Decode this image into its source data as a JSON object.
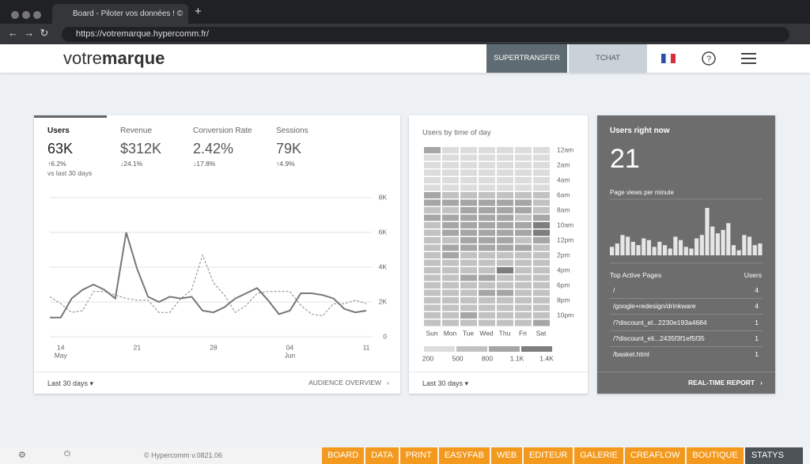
{
  "browser": {
    "tab_title": "Board - Piloter vos données ! ©",
    "url": "https://votremarque.hypercomm.fr/"
  },
  "header": {
    "logo_light": "votre",
    "logo_bold": "marque",
    "buttons": [
      "SUPERTRANSFER",
      "TCHAT"
    ]
  },
  "audience": {
    "metrics": [
      {
        "label": "Users",
        "value": "63K",
        "change": "↑6.2%"
      },
      {
        "label": "Revenue",
        "value": "$312K",
        "change": "↓24.1%"
      },
      {
        "label": "Conversion Rate",
        "value": "2.42%",
        "change": "↓17.8%"
      },
      {
        "label": "Sessions",
        "value": "79K",
        "change": "↑4.9%"
      }
    ],
    "comparison": "vs last 30 days",
    "period": "Last 30 days",
    "link": "AUDIENCE OVERVIEW"
  },
  "time_of_day": {
    "period": "Last 30 days"
  },
  "realtime": {
    "title": "Users right now",
    "count": 21,
    "table": {
      "headers": [
        "Top Active Pages",
        "Users"
      ],
      "rows": [
        [
          "/",
          4
        ],
        [
          "/google+redesign/drinkware",
          4
        ],
        [
          "/?discount_el...2230e193a4684",
          1
        ],
        [
          "/?discount_eli...2435f3f1ef5f35",
          1
        ],
        [
          "/basket.html",
          1
        ]
      ]
    },
    "link": "REAL-TIME REPORT"
  },
  "chart_data": [
    {
      "type": "line",
      "categories": [
        null,
        "14",
        null,
        null,
        null,
        null,
        null,
        null,
        "21",
        null,
        null,
        null,
        null,
        null,
        null,
        "28",
        null,
        null,
        null,
        null,
        null,
        null,
        "04",
        null,
        null,
        null,
        null,
        null,
        null,
        "11"
      ],
      "x_sublabels": [
        null,
        "May",
        null,
        null,
        null,
        null,
        null,
        null,
        null,
        null,
        null,
        null,
        null,
        null,
        null,
        null,
        null,
        null,
        null,
        null,
        null,
        null,
        "Jun",
        null,
        null,
        null,
        null,
        null,
        null,
        null
      ],
      "series": [
        {
          "color": "#777777",
          "dashed": false,
          "values": [
            1100,
            1100,
            2200,
            2700,
            3000,
            2700,
            2200,
            6000,
            3900,
            2300,
            2000,
            2300,
            2200,
            2300,
            1500,
            1400,
            1700,
            2200,
            2500,
            2800,
            2100,
            1300,
            1500,
            2500,
            2500,
            2400,
            2200,
            1600,
            1400,
            1500
          ]
        },
        {
          "color": "#888888",
          "dashed": true,
          "values": [
            2300,
            1900,
            1400,
            1500,
            2600,
            2600,
            2400,
            2200,
            2100,
            2100,
            1400,
            1400,
            2200,
            2700,
            4700,
            3100,
            2400,
            1400,
            1800,
            2500,
            2600,
            2600,
            2600,
            1800,
            1300,
            1200,
            1900,
            1900,
            2100,
            1900
          ]
        }
      ],
      "ylim": [
        0,
        8000
      ],
      "yticks": [
        0,
        {
          "value": 2000,
          "label": "2K"
        },
        {
          "value": 4000,
          "label": "4K"
        },
        {
          "value": 6000,
          "label": "6K"
        },
        {
          "value": 8000,
          "label": "8K"
        }
      ],
      "grid": true
    },
    {
      "type": "heatmap",
      "title": "Users by time of day",
      "columns": [
        "Sun",
        "Mon",
        "Tue",
        "Wed",
        "Thu",
        "Fri",
        "Sat"
      ],
      "rows": [
        "12am",
        null,
        "2am",
        null,
        "4am",
        null,
        "6am",
        null,
        "8am",
        null,
        "10am",
        null,
        "12pm",
        null,
        "2pm",
        null,
        "4pm",
        null,
        "6pm",
        null,
        "8pm",
        null,
        "10pm",
        null
      ],
      "values": [
        [
          800,
          400,
          400,
          400,
          400,
          400,
          400
        ],
        [
          400,
          350,
          350,
          350,
          350,
          350,
          400
        ],
        [
          350,
          300,
          300,
          300,
          300,
          300,
          350
        ],
        [
          300,
          300,
          300,
          300,
          300,
          300,
          300
        ],
        [
          300,
          300,
          300,
          300,
          300,
          300,
          300
        ],
        [
          400,
          400,
          400,
          400,
          400,
          400,
          400
        ],
        [
          800,
          500,
          500,
          500,
          500,
          500,
          500
        ],
        [
          800,
          800,
          800,
          800,
          800,
          800,
          500
        ],
        [
          500,
          500,
          800,
          800,
          800,
          800,
          500
        ],
        [
          800,
          800,
          800,
          800,
          800,
          500,
          800
        ],
        [
          500,
          800,
          800,
          800,
          800,
          800,
          1400
        ],
        [
          500,
          800,
          800,
          800,
          800,
          800,
          1100
        ],
        [
          500,
          500,
          800,
          800,
          800,
          500,
          800
        ],
        [
          500,
          800,
          800,
          800,
          800,
          800,
          500
        ],
        [
          500,
          800,
          500,
          500,
          500,
          500,
          500
        ],
        [
          500,
          500,
          500,
          500,
          500,
          500,
          500
        ],
        [
          500,
          500,
          500,
          500,
          1100,
          500,
          500
        ],
        [
          500,
          500,
          800,
          800,
          500,
          500,
          500
        ],
        [
          500,
          500,
          500,
          500,
          500,
          500,
          500
        ],
        [
          500,
          500,
          500,
          800,
          800,
          500,
          500
        ],
        [
          500,
          500,
          500,
          500,
          500,
          500,
          500
        ],
        [
          500,
          500,
          500,
          500,
          500,
          500,
          500
        ],
        [
          500,
          500,
          800,
          500,
          500,
          500,
          500
        ],
        [
          500,
          500,
          500,
          500,
          500,
          500,
          800
        ]
      ],
      "legend_ticks": [
        200,
        500,
        800,
        {
          "value": 1100,
          "label": "1.1K"
        },
        {
          "value": 1400,
          "label": "1.4K"
        }
      ],
      "colors": [
        "#dcdcdc",
        "#c2c2c2",
        "#a6a6a6",
        "#7e7e7e"
      ]
    },
    {
      "type": "bar",
      "title": "Page views per minute",
      "color": "#e6e6e6",
      "values": [
        5,
        7,
        12,
        11,
        8,
        6,
        10,
        9,
        5,
        8,
        6,
        4,
        11,
        9,
        5,
        4,
        10,
        12,
        28,
        17,
        13,
        15,
        19,
        6,
        3,
        12,
        11,
        6,
        7
      ]
    }
  ],
  "footer": {
    "copyright": "© Hypercomm v.0821.06",
    "nav": [
      "BOARD",
      "DATA",
      "PRINT",
      "EASYFAB",
      "WEB",
      "EDITEUR",
      "GALERIE",
      "CREAFLOW",
      "BOUTIQUE",
      "STATYS"
    ]
  }
}
